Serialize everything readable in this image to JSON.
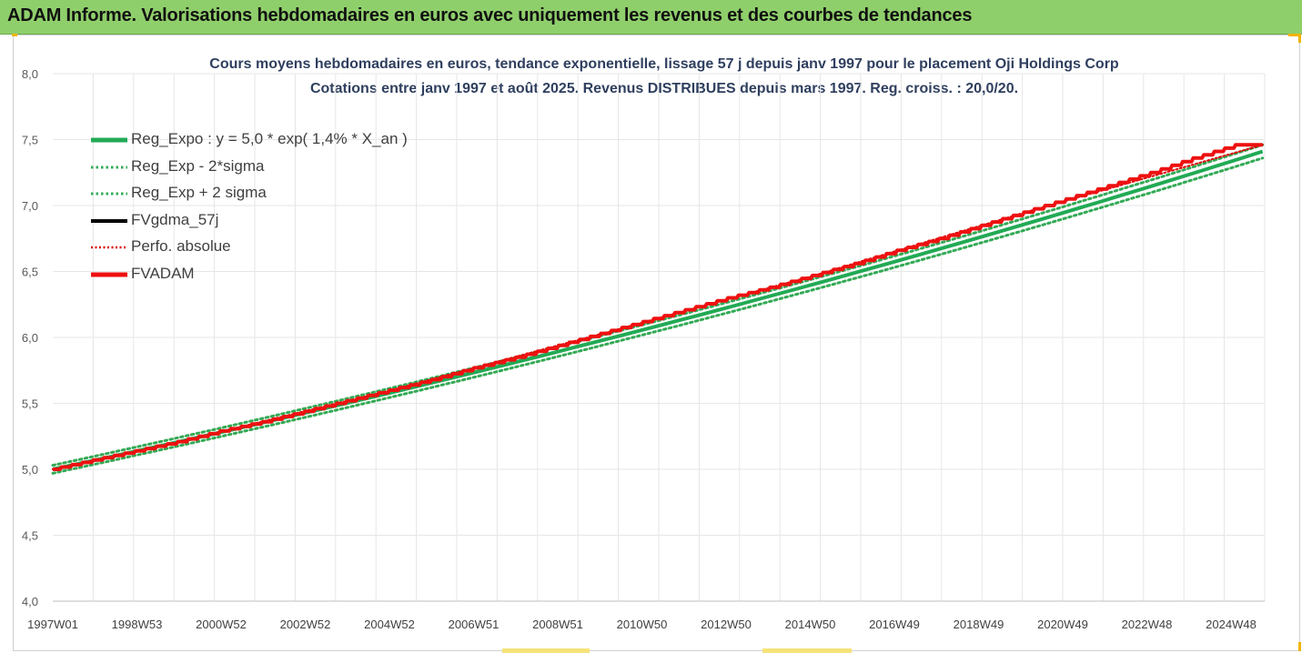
{
  "banner": {
    "title": "ADAM Informe. Valorisations hebdomadaires en euros avec uniquement les revenus et des courbes de tendances"
  },
  "colors": {
    "banner_bg": "#8fcf6b",
    "reg_expo": "#22aa55",
    "sigma": "#33aa55",
    "fvgdma": "#000000",
    "perfo": "#dd0000",
    "fvadam": "#ee1111",
    "grid": "#e6e6e6",
    "title_text": "#2f3f5f"
  },
  "chart_data": {
    "type": "line",
    "title": "Cours moyens hebdomadaires en euros, tendance exponentielle, lissage 57 j depuis janv 1997 pour le placement Oji Holdings Corp",
    "subtitle": "Cotations entre janv 1997 et août 2025. Revenus DISTRIBUES depuis mars 1997. Reg. croiss. : 20,0/20.",
    "xlabel": "",
    "ylabel": "",
    "ylim": [
      4.0,
      8.0
    ],
    "y_ticks": [
      "4,0",
      "4,5",
      "5,0",
      "5,5",
      "6,0",
      "6,5",
      "7,0",
      "7,5",
      "8,0"
    ],
    "x_tick_labels": [
      "1997W01",
      "1998W53",
      "2000W52",
      "2002W52",
      "2004W52",
      "2006W51",
      "2008W51",
      "2010W50",
      "2012W50",
      "2014W50",
      "2016W49",
      "2018W49",
      "2020W49",
      "2022W48",
      "2024W48"
    ],
    "x_range_years": [
      1997.0,
      2025.65
    ],
    "grid": true,
    "legend_position": "top-left",
    "series": [
      {
        "name": "Reg_Expo : y = 5,0 * exp( 1,4% *  X_an )",
        "style": "solid",
        "color_key": "reg_expo",
        "x": [
          1997.0,
          2025.6
        ],
        "y": [
          5.0,
          7.41
        ]
      },
      {
        "name": "Reg_Exp - 2*sigma",
        "style": "dotted",
        "color_key": "sigma",
        "x": [
          1997.0,
          2025.6
        ],
        "y": [
          4.97,
          7.36
        ]
      },
      {
        "name": "Reg_Exp + 2 sigma",
        "style": "dotted",
        "color_key": "sigma",
        "x": [
          1997.0,
          2025.6
        ],
        "y": [
          5.03,
          7.46
        ]
      },
      {
        "name": "FVgdma_57j",
        "style": "solid",
        "color_key": "fvgdma",
        "x": [
          1997.0,
          2000.0,
          2005.0,
          2010.0,
          2015.0,
          2020.0,
          2024.8,
          2025.6
        ],
        "y": [
          5.0,
          5.21,
          5.6,
          6.03,
          6.47,
          6.95,
          7.4,
          7.46
        ]
      },
      {
        "name": "Perfo. absolue",
        "style": "dotted",
        "color_key": "perfo",
        "x": [
          1997.0,
          2000.0,
          2005.0,
          2010.0,
          2015.0,
          2020.0,
          2025.6
        ],
        "y": [
          5.0,
          5.21,
          5.6,
          6.03,
          6.47,
          6.95,
          7.46
        ]
      },
      {
        "name": "FVADAM",
        "style": "step",
        "color_key": "fvadam",
        "x": [
          1997.0,
          1998.0,
          1999.0,
          2000.0,
          2001.0,
          2002.0,
          2003.0,
          2004.0,
          2005.0,
          2006.0,
          2007.0,
          2008.0,
          2009.0,
          2010.0,
          2011.0,
          2012.0,
          2013.0,
          2014.0,
          2015.0,
          2016.0,
          2017.0,
          2018.0,
          2019.0,
          2020.0,
          2021.0,
          2022.0,
          2023.0,
          2024.0,
          2025.0,
          2025.6
        ],
        "y": [
          5.0,
          5.07,
          5.14,
          5.21,
          5.29,
          5.36,
          5.44,
          5.52,
          5.6,
          5.68,
          5.77,
          5.85,
          5.94,
          6.03,
          6.12,
          6.21,
          6.3,
          6.38,
          6.47,
          6.56,
          6.66,
          6.75,
          6.85,
          6.95,
          7.05,
          7.15,
          7.25,
          7.36,
          7.46,
          7.46
        ]
      }
    ]
  }
}
